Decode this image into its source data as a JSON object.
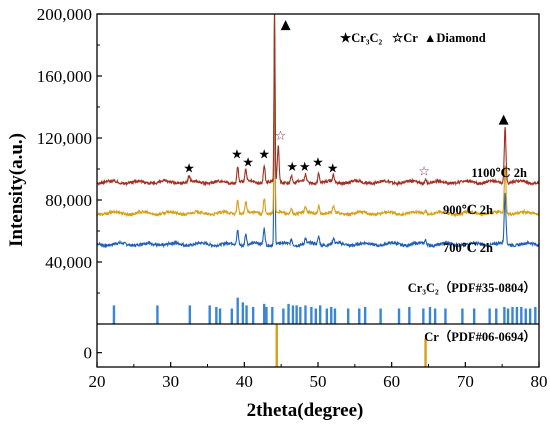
{
  "chart_data": {
    "type": "line",
    "xlabel": "2theta(degree)",
    "ylabel": "Intensity(a.u.)",
    "xlim": [
      20,
      80
    ],
    "xticks": [
      "20",
      "30",
      "40",
      "50",
      "60",
      "70",
      "80"
    ],
    "upper_panel": {
      "ylim": [
        0,
        200000
      ],
      "yticks": [
        "40,000",
        "80,000",
        "120,000",
        "160,000",
        "200,000"
      ]
    },
    "lower_panel": {
      "ylim": [
        -5,
        10
      ],
      "yticks": [
        "0"
      ]
    },
    "legend": {
      "cr3c2": "★Cr₃C₂",
      "cr": "☆Cr",
      "diamond": "▲Diamond"
    },
    "series": [
      {
        "name": "700℃ 2h",
        "color": "#1f5fb4",
        "baseline": 51500,
        "peaks": [
          {
            "x": 39.1,
            "y": 61000
          },
          {
            "x": 40.2,
            "y": 59000
          },
          {
            "x": 42.7,
            "y": 62000
          },
          {
            "x": 44.1,
            "y": 200000
          },
          {
            "x": 46.4,
            "y": 55000
          },
          {
            "x": 48.3,
            "y": 55000
          },
          {
            "x": 50.1,
            "y": 57000
          },
          {
            "x": 52.1,
            "y": 55000
          },
          {
            "x": 64.6,
            "y": 54000
          },
          {
            "x": 75.4,
            "y": 85000
          }
        ]
      },
      {
        "name": "900℃ 2h",
        "color": "#d4a017",
        "baseline": 71500,
        "peaks": [
          {
            "x": 39.1,
            "y": 81000
          },
          {
            "x": 40.2,
            "y": 79000
          },
          {
            "x": 42.7,
            "y": 82000
          },
          {
            "x": 44.1,
            "y": 200000
          },
          {
            "x": 46.4,
            "y": 75000
          },
          {
            "x": 48.3,
            "y": 75000
          },
          {
            "x": 50.1,
            "y": 77000
          },
          {
            "x": 52.1,
            "y": 75000
          },
          {
            "x": 64.6,
            "y": 74000
          },
          {
            "x": 75.4,
            "y": 103000
          }
        ]
      },
      {
        "name": "1100℃ 2h",
        "color": "#a03020",
        "baseline": 91500,
        "peaks": [
          {
            "x": 32.5,
            "y": 95000
          },
          {
            "x": 39.1,
            "y": 102000
          },
          {
            "x": 40.2,
            "y": 99000
          },
          {
            "x": 42.7,
            "y": 103000
          },
          {
            "x": 44.1,
            "y": 200000
          },
          {
            "x": 44.6,
            "y": 115000
          },
          {
            "x": 46.4,
            "y": 96000
          },
          {
            "x": 48.3,
            "y": 96000
          },
          {
            "x": 50.1,
            "y": 98000
          },
          {
            "x": 52.1,
            "y": 96000
          },
          {
            "x": 64.6,
            "y": 94000
          },
          {
            "x": 75.4,
            "y": 128000
          }
        ]
      }
    ],
    "reference_cr3c2": {
      "label": "Cr₃C₂（PDF#35-0804）",
      "color": "#3a86d6",
      "lines": [
        {
          "x": 22.3,
          "y": 12000
        },
        {
          "x": 28.2,
          "y": 12000
        },
        {
          "x": 32.6,
          "y": 12000
        },
        {
          "x": 35.3,
          "y": 12000
        },
        {
          "x": 36.2,
          "y": 11000
        },
        {
          "x": 36.7,
          "y": 10000
        },
        {
          "x": 38.3,
          "y": 10000
        },
        {
          "x": 39.1,
          "y": 17000
        },
        {
          "x": 39.8,
          "y": 14000
        },
        {
          "x": 40.3,
          "y": 12000
        },
        {
          "x": 41.2,
          "y": 11000
        },
        {
          "x": 42.7,
          "y": 13000
        },
        {
          "x": 43.0,
          "y": 11000
        },
        {
          "x": 43.8,
          "y": 11000
        },
        {
          "x": 45.3,
          "y": 10000
        },
        {
          "x": 46.0,
          "y": 13000
        },
        {
          "x": 46.6,
          "y": 12000
        },
        {
          "x": 47.1,
          "y": 12000
        },
        {
          "x": 47.6,
          "y": 11000
        },
        {
          "x": 48.3,
          "y": 12000
        },
        {
          "x": 49.1,
          "y": 11000
        },
        {
          "x": 49.7,
          "y": 10000
        },
        {
          "x": 50.3,
          "y": 12000
        },
        {
          "x": 51.2,
          "y": 10000
        },
        {
          "x": 51.8,
          "y": 11000
        },
        {
          "x": 52.3,
          "y": 10000
        },
        {
          "x": 54.1,
          "y": 10000
        },
        {
          "x": 55.6,
          "y": 10000
        },
        {
          "x": 56.4,
          "y": 11000
        },
        {
          "x": 58.5,
          "y": 10000
        },
        {
          "x": 61.0,
          "y": 10000
        },
        {
          "x": 62.4,
          "y": 11000
        },
        {
          "x": 64.3,
          "y": 10000
        },
        {
          "x": 65.2,
          "y": 11000
        },
        {
          "x": 65.9,
          "y": 10000
        },
        {
          "x": 67.3,
          "y": 10000
        },
        {
          "x": 69.6,
          "y": 10000
        },
        {
          "x": 71.2,
          "y": 10000
        },
        {
          "x": 73.3,
          "y": 10000
        },
        {
          "x": 74.2,
          "y": 10000
        },
        {
          "x": 75.3,
          "y": 11000
        },
        {
          "x": 75.8,
          "y": 10000
        },
        {
          "x": 76.4,
          "y": 11000
        },
        {
          "x": 77.0,
          "y": 11000
        },
        {
          "x": 77.6,
          "y": 11000
        },
        {
          "x": 78.2,
          "y": 10000
        },
        {
          "x": 78.8,
          "y": 10000
        },
        {
          "x": 79.5,
          "y": 11000
        }
      ]
    },
    "reference_cr": {
      "label": "Cr（PDF#06-0694）",
      "color": "#d4a017",
      "lines": [
        {
          "x": 44.4,
          "y": 10
        },
        {
          "x": 64.6,
          "y": 5
        }
      ]
    },
    "markers": [
      {
        "symbol": "★",
        "x": 32.5,
        "y": 101000
      },
      {
        "symbol": "★",
        "x": 39.0,
        "y": 110000
      },
      {
        "symbol": "★",
        "x": 40.5,
        "y": 105000
      },
      {
        "symbol": "★",
        "x": 42.7,
        "y": 110000
      },
      {
        "symbol": "▲",
        "x": 45.6,
        "y": 194000
      },
      {
        "symbol": "☆",
        "x": 44.9,
        "y": 122000
      },
      {
        "symbol": "★",
        "x": 46.5,
        "y": 102000
      },
      {
        "symbol": "★",
        "x": 48.2,
        "y": 102000
      },
      {
        "symbol": "★",
        "x": 50.0,
        "y": 105000
      },
      {
        "symbol": "★",
        "x": 52.0,
        "y": 101000
      },
      {
        "symbol": "☆",
        "x": 64.4,
        "y": 99000
      },
      {
        "symbol": "▲",
        "x": 75.2,
        "y": 133000
      }
    ]
  }
}
